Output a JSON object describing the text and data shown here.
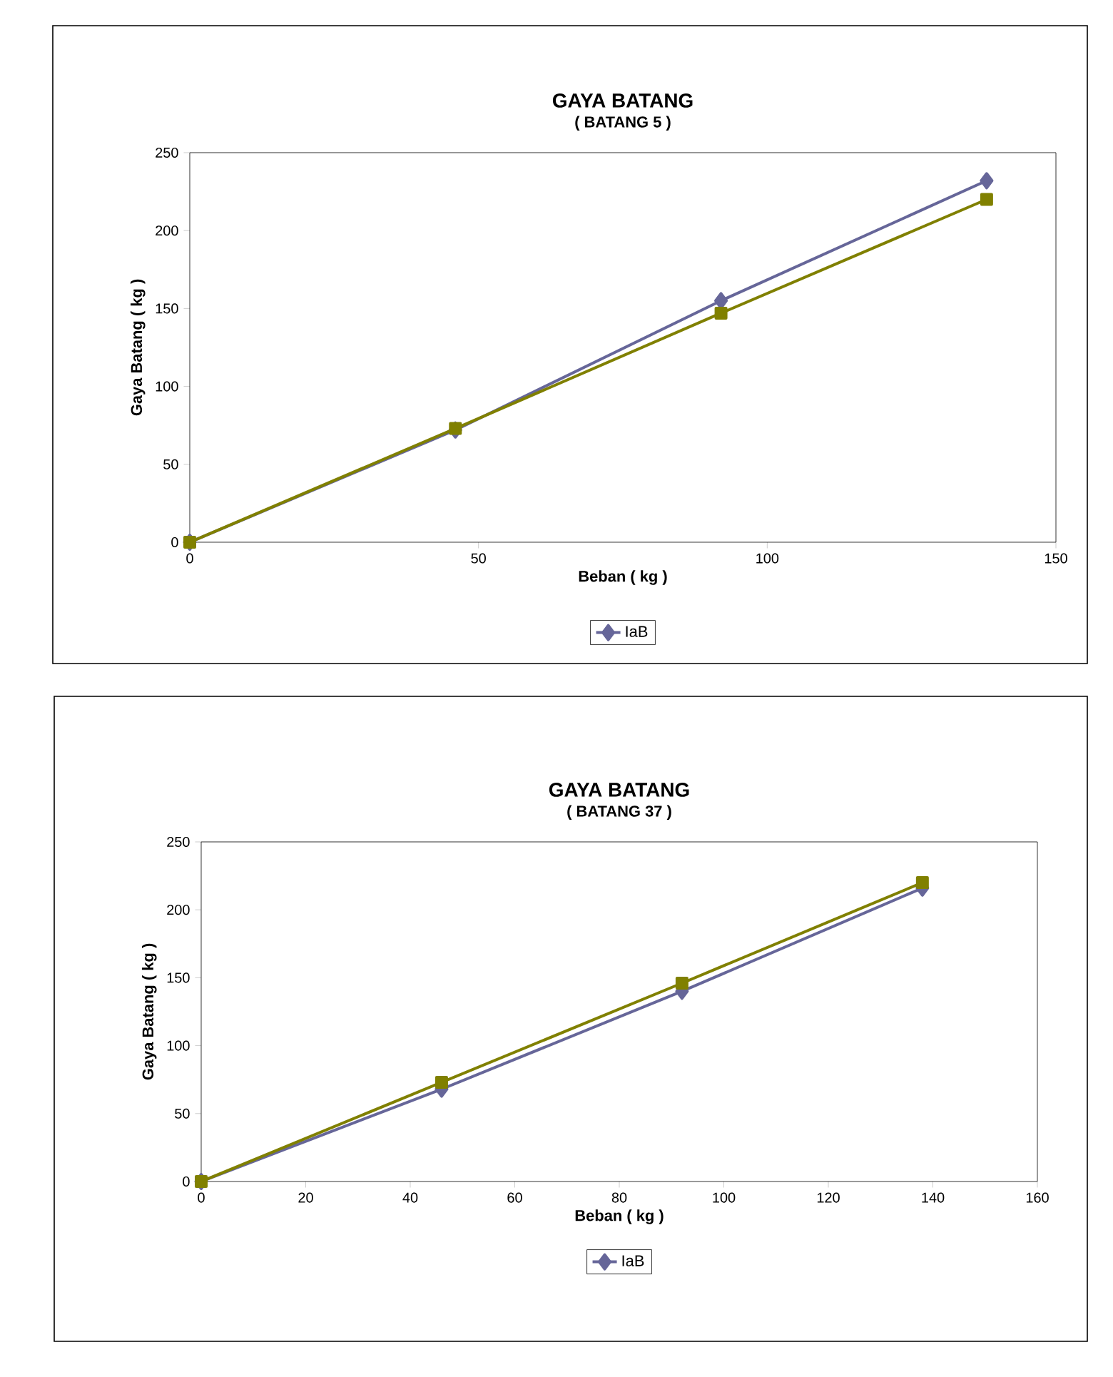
{
  "chart_data": [
    {
      "type": "line",
      "title": "GAYA BATANG",
      "subtitle": "( BATANG 5 )",
      "xlabel": "Beban ( kg )",
      "ylabel": "Gaya Batang ( kg )",
      "x": [
        0,
        46,
        92,
        138
      ],
      "series": [
        {
          "name": "IaB",
          "color": "#666699",
          "marker": "diamond",
          "values": [
            0,
            72,
            155,
            232
          ]
        },
        {
          "color": "#808000",
          "marker": "square",
          "values": [
            0,
            73,
            147,
            220
          ]
        }
      ],
      "xlim": [
        0,
        150
      ],
      "xticks": [
        0,
        50,
        100,
        150
      ],
      "ylim": [
        0,
        250
      ],
      "yticks": [
        0,
        50,
        100,
        150,
        200,
        250
      ],
      "legend": "bottom",
      "grid": false
    },
    {
      "type": "line",
      "title": "GAYA BATANG",
      "subtitle": "( BATANG 37 )",
      "xlabel": "Beban ( kg )",
      "ylabel": "Gaya Batang ( kg )",
      "x": [
        0,
        46,
        92,
        138
      ],
      "series": [
        {
          "name": "IaB",
          "color": "#666699",
          "marker": "diamond",
          "values": [
            0,
            68,
            140,
            216
          ]
        },
        {
          "color": "#808000",
          "marker": "square",
          "values": [
            0,
            73,
            146,
            220
          ]
        }
      ],
      "xlim": [
        0,
        160
      ],
      "xticks": [
        0,
        20,
        40,
        60,
        80,
        100,
        120,
        140,
        160
      ],
      "ylim": [
        0,
        250
      ],
      "yticks": [
        0,
        50,
        100,
        150,
        200,
        250
      ],
      "legend": "bottom",
      "grid": false
    }
  ]
}
